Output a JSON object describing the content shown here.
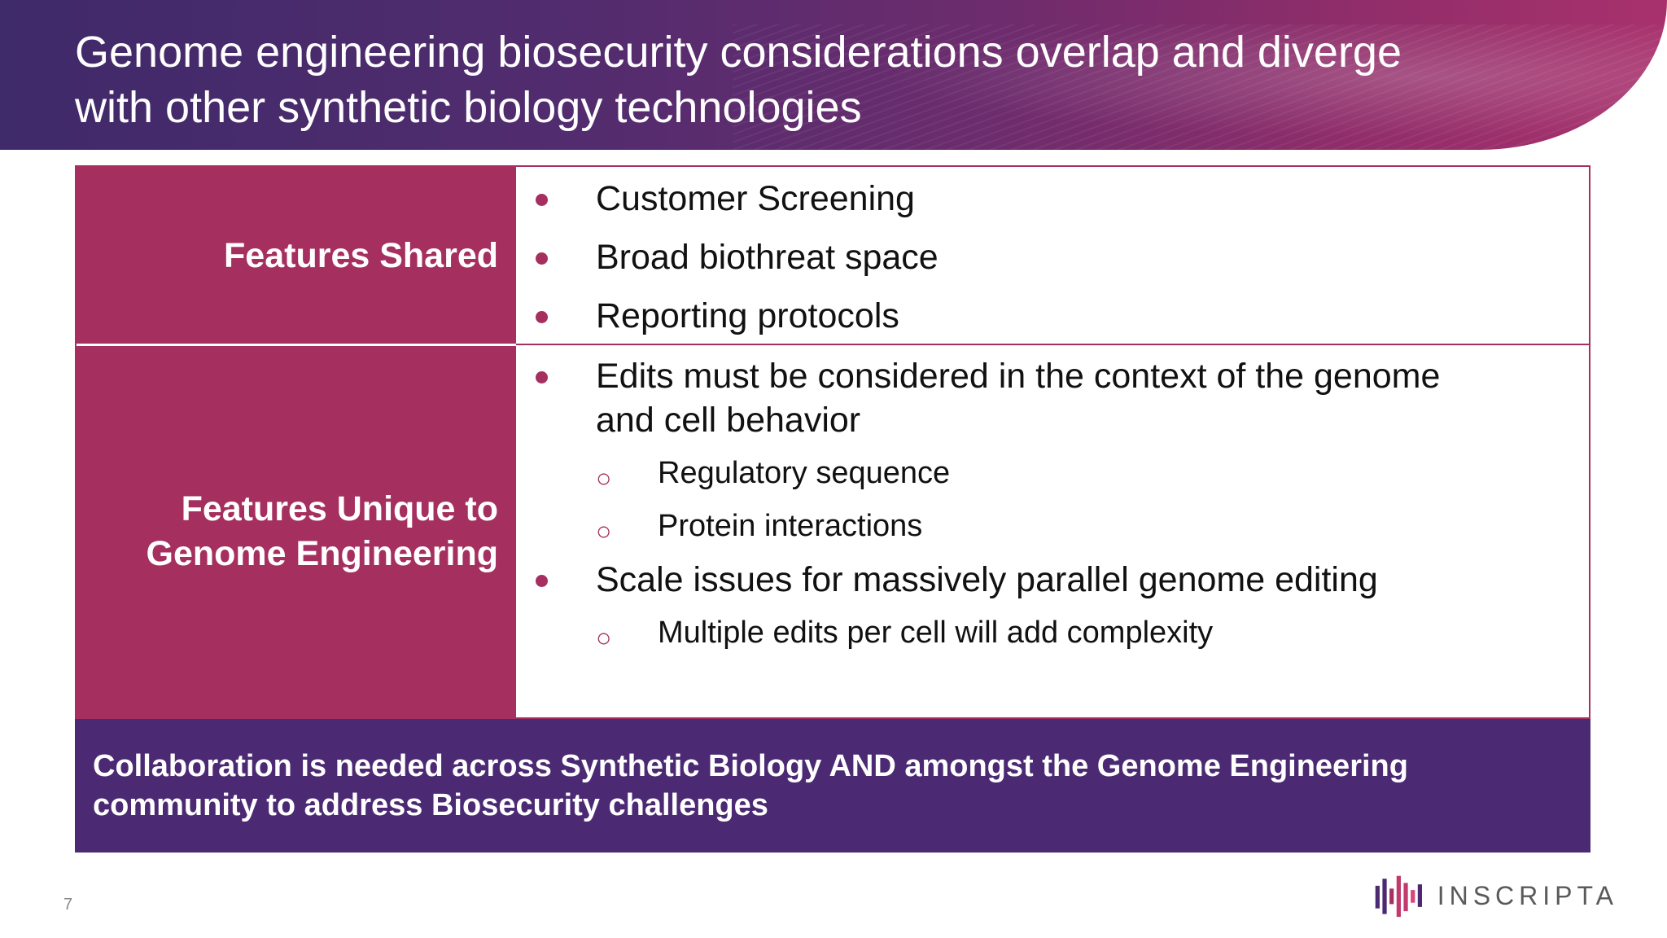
{
  "slide": {
    "title_line1": "Genome engineering  biosecurity considerations overlap and diverge",
    "title_line2": "with other synthetic biology technologies",
    "page_number": "7"
  },
  "table": {
    "shared": {
      "label": "Features Shared",
      "items": [
        "Customer Screening",
        "Broad biothreat space",
        "Reporting protocols"
      ]
    },
    "unique": {
      "label_line1": "Features Unique to",
      "label_line2": "Genome Engineering",
      "item1": "Edits must be considered in the context of the genome and cell behavior",
      "item1_sub": [
        "Regulatory sequence",
        "Protein interactions"
      ],
      "item2": "Scale issues for massively parallel genome editing",
      "item2_sub": [
        "Multiple edits per cell will add complexity"
      ]
    }
  },
  "footer": {
    "text": "Collaboration is needed across Synthetic Biology AND amongst the Genome Engineering community to address Biosecurity challenges"
  },
  "logo": {
    "text": "INSCRIPTA",
    "icon": "inscripta-logo-icon"
  },
  "colors": {
    "magenta": "#a5305f",
    "purple": "#4b2a73"
  }
}
